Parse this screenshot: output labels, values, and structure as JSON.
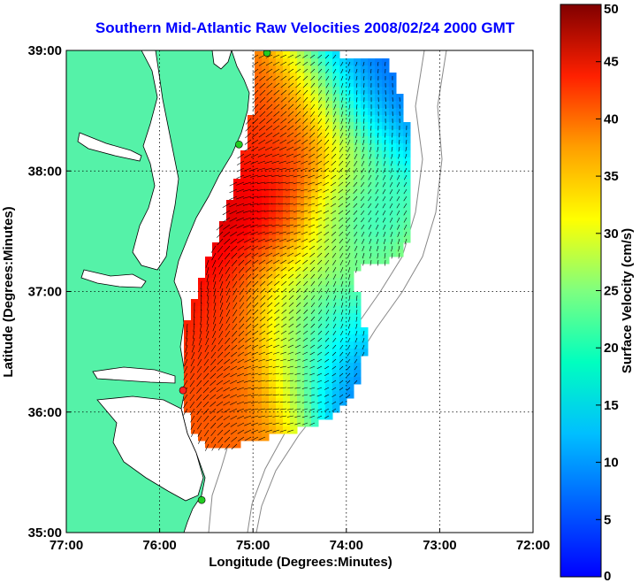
{
  "title": "Southern Mid-Atlantic Raw Velocities 2008/02/24 2000 GMT",
  "map": {
    "xlabel": "Longitude (Degrees:Minutes)",
    "ylabel": "Latitude (Degrees:Minutes)",
    "x_ticks": [
      "77:00",
      "76:00",
      "75:00",
      "74:00",
      "73:00",
      "72:00"
    ],
    "y_ticks": [
      "39:00",
      "38:00",
      "37:00",
      "36:00",
      "35:00"
    ],
    "lon_range": [
      -77,
      -72
    ],
    "lat_range": [
      35,
      39
    ],
    "land_color": "#55f2a8",
    "grid": true
  },
  "colorbar": {
    "label": "Surface Velocity (cm/s)",
    "ticks": [
      "50",
      "45",
      "40",
      "35",
      "30",
      "25",
      "20",
      "15",
      "10",
      "5",
      "0"
    ],
    "range": [
      0,
      50
    ],
    "colormap": "jet"
  },
  "stations": [
    {
      "lon": -74.85,
      "lat": 38.98,
      "color": "#22cc22"
    },
    {
      "lon": -75.15,
      "lat": 38.22,
      "color": "#22cc22"
    },
    {
      "lon": -75.75,
      "lat": 36.18,
      "color": "#ff2222"
    },
    {
      "lon": -75.55,
      "lat": 35.27,
      "color": "#22cc22"
    }
  ]
}
